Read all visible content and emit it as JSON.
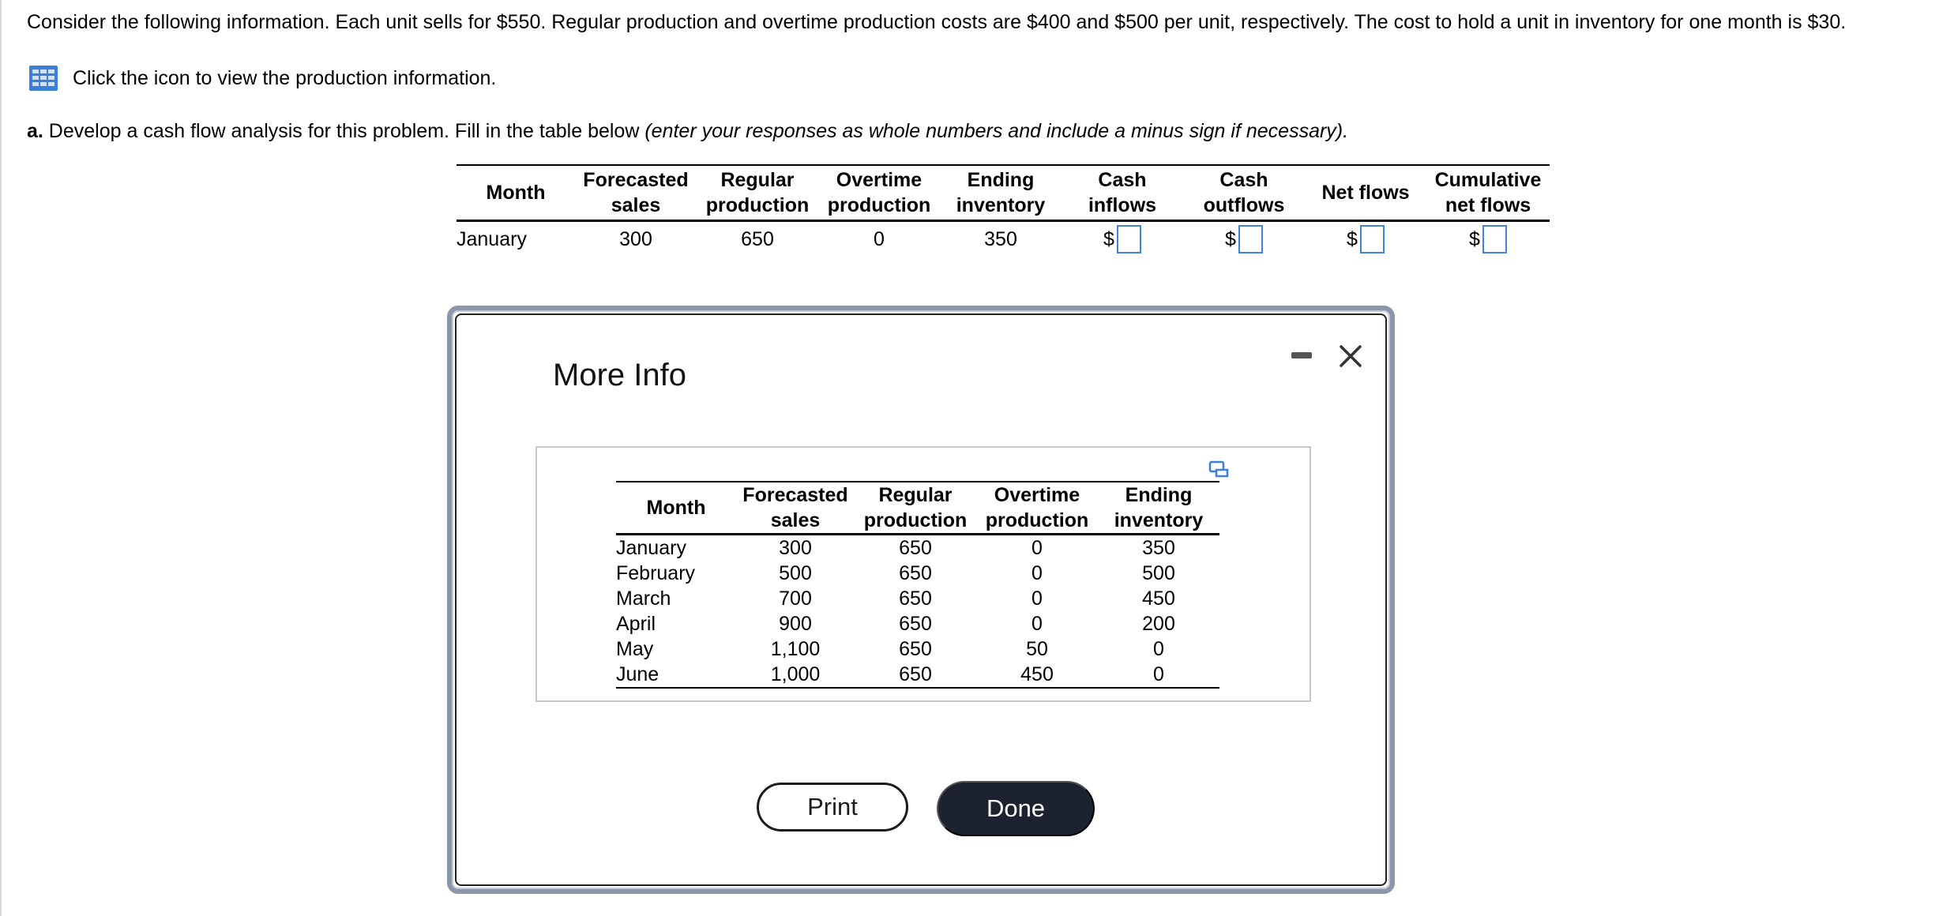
{
  "question": {
    "text": "Consider the following information. Each unit sells for $550. Regular production and overtime production costs are $400 and $500 per unit, respectively. The cost to hold a unit in inventory for one month is $30."
  },
  "info_link": {
    "icon": "table-grid-icon",
    "text": "Click the icon to view the production information."
  },
  "part_a": {
    "label": "a.",
    "text": " Develop a cash flow analysis for this problem. Fill in the table below ",
    "hint": "(enter your responses as whole numbers and include a minus sign if necessary)."
  },
  "answer_table": {
    "headers": [
      [
        "Month"
      ],
      [
        "Forecasted",
        "sales"
      ],
      [
        "Regular",
        "production"
      ],
      [
        "Overtime",
        "production"
      ],
      [
        "Ending",
        "inventory"
      ],
      [
        "Cash",
        "inflows"
      ],
      [
        "Cash",
        "outflows"
      ],
      [
        "Net flows"
      ],
      [
        "Cumulative",
        "net flows"
      ]
    ],
    "row": {
      "month": "January",
      "forecasted_sales": "300",
      "regular_production": "650",
      "overtime_production": "0",
      "ending_inventory": "350",
      "currency_symbol": "$",
      "cash_inflows": "",
      "cash_outflows": "",
      "net_flows": "",
      "cumulative_net_flows": ""
    }
  },
  "modal": {
    "title": "More Info",
    "minimize_icon": "minimize-icon",
    "close_icon": "close-icon",
    "expand_icon": "expand-icon",
    "table": {
      "headers": [
        [
          "Month"
        ],
        [
          "Forecasted",
          "sales"
        ],
        [
          "Regular",
          "production"
        ],
        [
          "Overtime",
          "production"
        ],
        [
          "Ending",
          "inventory"
        ]
      ],
      "rows": [
        [
          "January",
          "300",
          "650",
          "0",
          "350"
        ],
        [
          "February",
          "500",
          "650",
          "0",
          "500"
        ],
        [
          "March",
          "700",
          "650",
          "0",
          "450"
        ],
        [
          "April",
          "900",
          "650",
          "0",
          "200"
        ],
        [
          "May",
          "1,100",
          "650",
          "50",
          "0"
        ],
        [
          "June",
          "1,000",
          "650",
          "450",
          "0"
        ]
      ]
    },
    "print_label": "Print",
    "done_label": "Done"
  },
  "colors": {
    "input_border": "#3c85d8",
    "icon_blue": "#3c7fd6",
    "done_bg": "#1d2230",
    "modal_border": "#8a97a8"
  }
}
